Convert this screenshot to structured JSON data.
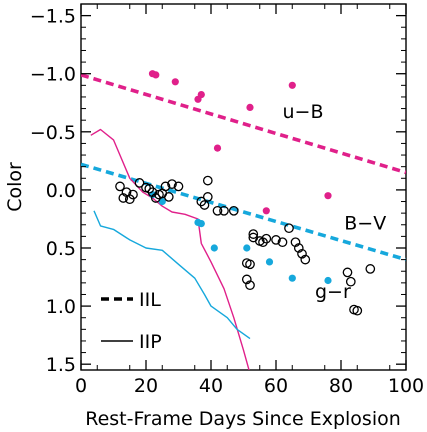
{
  "chart_data": {
    "type": "scatter",
    "xlabel": "Rest-Frame Days Since Explosion",
    "ylabel": "Color",
    "xlim": [
      0,
      100
    ],
    "ylim": [
      1.55,
      -1.6
    ],
    "y_inverted": true,
    "x_ticks": [
      0,
      20,
      40,
      60,
      80,
      100
    ],
    "x_tick_labels": [
      "0",
      "20",
      "40",
      "60",
      "80",
      "100"
    ],
    "y_ticks": [
      -1.5,
      -1.0,
      -0.5,
      0.0,
      0.5,
      1.0,
      1.5
    ],
    "y_tick_labels": [
      "−1.5",
      "−1.0",
      "−0.5",
      "0.0",
      "0.5",
      "1.0",
      "1.5"
    ],
    "grid": false,
    "legend": {
      "position": "bottom-left",
      "entries": [
        {
          "label": "IIL",
          "style": "dashed"
        },
        {
          "label": "IIP",
          "style": "solid"
        }
      ]
    },
    "annotations": [
      {
        "text": "u−B",
        "x": 62,
        "y": -0.62,
        "color": "#e0208a"
      },
      {
        "text": "B−V",
        "x": 81,
        "y": 0.34,
        "color": "#16a8dc"
      },
      {
        "text": "g−r",
        "x": 72,
        "y": 0.93,
        "color": "#000000"
      }
    ],
    "series": [
      {
        "name": "u−B",
        "kind": "points",
        "marker": "filled-circle",
        "color": "#e0208a",
        "points": [
          [
            22,
            -1.0
          ],
          [
            23,
            -0.99
          ],
          [
            29,
            -0.93
          ],
          [
            36,
            -0.78
          ],
          [
            37,
            -0.82
          ],
          [
            42,
            -0.36
          ],
          [
            52,
            -0.71
          ],
          [
            57,
            0.18
          ],
          [
            65,
            -0.9
          ],
          [
            76,
            0.05
          ]
        ]
      },
      {
        "name": "B−V",
        "kind": "points",
        "marker": "filled-circle",
        "color": "#16a8dc",
        "points": [
          [
            22,
            0.04
          ],
          [
            25,
            0.1
          ],
          [
            36,
            0.28
          ],
          [
            37,
            0.29
          ],
          [
            41,
            0.5
          ],
          [
            51,
            0.5
          ],
          [
            58,
            0.62
          ],
          [
            65,
            0.76
          ],
          [
            76,
            0.78
          ]
        ]
      },
      {
        "name": "g−r",
        "kind": "points",
        "marker": "open-circle",
        "color": "#000000",
        "points": [
          [
            12,
            -0.03
          ],
          [
            13,
            0.07
          ],
          [
            14,
            0.02
          ],
          [
            15,
            0.08
          ],
          [
            16,
            0.04
          ],
          [
            18,
            -0.06
          ],
          [
            20,
            -0.02
          ],
          [
            21,
            -0.01
          ],
          [
            22,
            0.02
          ],
          [
            23,
            0.07
          ],
          [
            24,
            0.04
          ],
          [
            25,
            0.03
          ],
          [
            26,
            -0.03
          ],
          [
            27,
            0.06
          ],
          [
            28,
            -0.05
          ],
          [
            30,
            -0.03
          ],
          [
            37,
            0.1
          ],
          [
            38,
            0.13
          ],
          [
            39,
            0.06
          ],
          [
            39,
            -0.08
          ],
          [
            42,
            0.18
          ],
          [
            44,
            0.18
          ],
          [
            47,
            0.18
          ],
          [
            53,
            0.38
          ],
          [
            53,
            0.41
          ],
          [
            55,
            0.44
          ],
          [
            56,
            0.45
          ],
          [
            57,
            0.42
          ],
          [
            60,
            0.43
          ],
          [
            62,
            0.45
          ],
          [
            64,
            0.33
          ],
          [
            66,
            0.45
          ],
          [
            67,
            0.5
          ],
          [
            68,
            0.55
          ],
          [
            69,
            0.6
          ],
          [
            51,
            0.63
          ],
          [
            52,
            0.64
          ],
          [
            51,
            0.77
          ],
          [
            52,
            0.82
          ],
          [
            82,
            0.71
          ],
          [
            83,
            0.79
          ],
          [
            84,
            1.03
          ],
          [
            85,
            1.04
          ],
          [
            89,
            0.68
          ]
        ]
      },
      {
        "name": "IIL u−B fit",
        "kind": "line",
        "style": "dashed",
        "color": "#e0208a",
        "points": [
          [
            0,
            -0.99
          ],
          [
            100,
            -0.15
          ]
        ]
      },
      {
        "name": "IIL B−V fit",
        "kind": "line",
        "style": "dashed",
        "color": "#16a8dc",
        "points": [
          [
            0,
            -0.22
          ],
          [
            100,
            0.6
          ]
        ]
      },
      {
        "name": "IIP u−B",
        "kind": "line",
        "style": "solid",
        "color": "#e0208a",
        "points": [
          [
            3,
            -0.47
          ],
          [
            6,
            -0.52
          ],
          [
            10,
            -0.43
          ],
          [
            15,
            -0.1
          ],
          [
            19,
            0.02
          ],
          [
            22,
            0.07
          ],
          [
            25,
            0.14
          ],
          [
            28,
            0.19
          ],
          [
            32,
            0.21
          ],
          [
            36,
            0.25
          ],
          [
            37,
            0.46
          ],
          [
            40,
            0.62
          ],
          [
            44,
            0.85
          ],
          [
            47,
            1.1
          ],
          [
            50,
            1.38
          ],
          [
            52,
            1.58
          ]
        ]
      },
      {
        "name": "IIP B−V",
        "kind": "line",
        "style": "solid",
        "color": "#16a8dc",
        "points": [
          [
            4,
            0.18
          ],
          [
            6,
            0.31
          ],
          [
            10,
            0.34
          ],
          [
            15,
            0.43
          ],
          [
            20,
            0.5
          ],
          [
            25,
            0.52
          ],
          [
            30,
            0.64
          ],
          [
            35,
            0.76
          ],
          [
            38,
            0.9
          ],
          [
            40,
            1.0
          ],
          [
            45,
            1.1
          ],
          [
            48,
            1.2
          ],
          [
            52,
            1.28
          ]
        ]
      }
    ]
  }
}
